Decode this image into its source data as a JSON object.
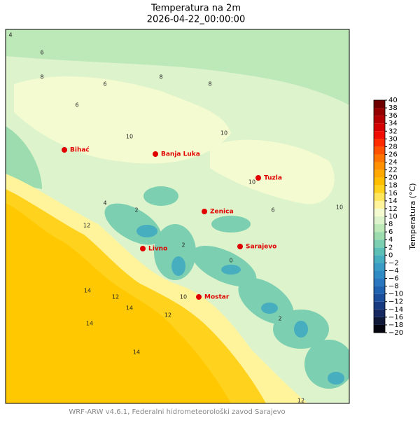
{
  "header": {
    "title": "Temperatura na 2m",
    "subtitle": "2026-04-22_00:00:00"
  },
  "cities": [
    "Bihać",
    "Banja Luka",
    "Tuzla",
    "Zenica",
    "Sarajevo",
    "Livno",
    "Mostar"
  ],
  "contour_labels": [
    4,
    6,
    6,
    8,
    8,
    6,
    10,
    10,
    8,
    10,
    10,
    12,
    14,
    14,
    14,
    12,
    12,
    14,
    10,
    2,
    2,
    0,
    2,
    4,
    6,
    12
  ],
  "colorbar": {
    "label": "Temperatura (°C)",
    "lim": [
      -20,
      40
    ],
    "colors": [
      "#050510",
      "#101838",
      "#152860",
      "#183a80",
      "#1a4e9a",
      "#1f62b0",
      "#2a76bf",
      "#2f8ac4",
      "#3a9cc4",
      "#47aebf",
      "#5cc0b6",
      "#7ccfb0",
      "#9cdcae",
      "#bde8b8",
      "#dcf3cc",
      "#f5fbd0",
      "#fff49c",
      "#ffe65a",
      "#ffd21e",
      "#ffbf00",
      "#ffa800",
      "#ff9000",
      "#ff7400",
      "#ff5200",
      "#ff2c00",
      "#f00c00",
      "#d40000",
      "#b40000",
      "#940000",
      "#6e0000"
    ],
    "ticks": [
      {
        "value": -20,
        "label": "−20"
      },
      {
        "value": -18,
        "label": "−18"
      },
      {
        "value": -16,
        "label": "−16"
      },
      {
        "value": -14,
        "label": "−14"
      },
      {
        "value": -12,
        "label": "−12"
      },
      {
        "value": -10,
        "label": "−10"
      },
      {
        "value": -8,
        "label": "−8"
      },
      {
        "value": -6,
        "label": "−6"
      },
      {
        "value": -4,
        "label": "−4"
      },
      {
        "value": -2,
        "label": "−2"
      },
      0,
      2,
      4,
      6,
      8,
      10,
      12,
      14,
      16,
      18,
      20,
      22,
      24,
      26,
      28,
      30,
      32,
      34,
      36,
      38,
      40
    ]
  },
  "footer": "WRF-ARW v4.6.1, Federalni hidrometeorološki zavod Sarajevo"
}
